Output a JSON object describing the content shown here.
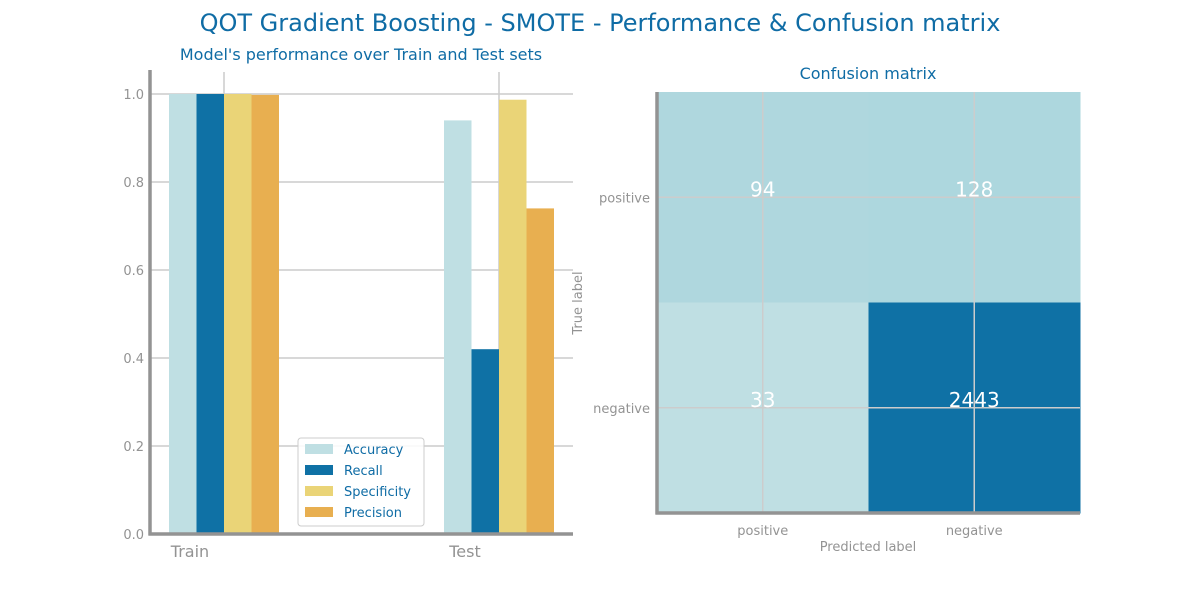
{
  "figure": {
    "title": "QOT Gradient Boosting - SMOTE - Performance & Confusion matrix",
    "colors": {
      "title": "#0f6ca5",
      "axis": "#939393",
      "grid": "#cccccc",
      "tick_text": "#939393"
    }
  },
  "chart_data": [
    {
      "type": "bar",
      "title": "Model's performance over Train and Test sets",
      "categories": [
        "Train",
        "Test"
      ],
      "series": [
        {
          "name": "Accuracy",
          "values": [
            1.0,
            0.94
          ],
          "color": "#bfdfe3"
        },
        {
          "name": "Recall",
          "values": [
            1.0,
            0.42
          ],
          "color": "#0f71a5"
        },
        {
          "name": "Specificity",
          "values": [
            1.0,
            0.987
          ],
          "color": "#ead477"
        },
        {
          "name": "Precision",
          "values": [
            0.998,
            0.74
          ],
          "color": "#e8af50"
        }
      ],
      "ylim": [
        0,
        1.05
      ],
      "yticks": [
        "0.0",
        "0.2",
        "0.4",
        "0.6",
        "0.8",
        "1.0"
      ],
      "xlabel": "",
      "ylabel": "",
      "grid": true,
      "legend_position": "lower-center"
    },
    {
      "type": "heatmap",
      "title": "Confusion matrix",
      "xlabel": "Predicted label",
      "ylabel": "True label",
      "x_labels": [
        "positive",
        "negative"
      ],
      "y_labels": [
        "positive",
        "negative"
      ],
      "values": [
        [
          94,
          128
        ],
        [
          33,
          2443
        ]
      ],
      "cell_colors": [
        [
          "#afd7de",
          "#add7de"
        ],
        [
          "#bfdfe3",
          "#0f71a5"
        ]
      ],
      "cell_text_color": "#ffffff",
      "grid": true
    }
  ]
}
